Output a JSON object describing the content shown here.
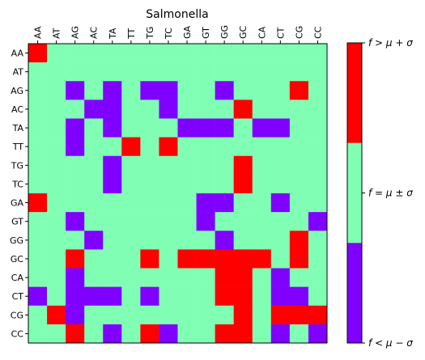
{
  "chart_data": {
    "type": "heatmap",
    "title": "Salmonella",
    "x_categories": [
      "AA",
      "AT",
      "AG",
      "AC",
      "TA",
      "TT",
      "TG",
      "TC",
      "GA",
      "GT",
      "GG",
      "GC",
      "CA",
      "CT",
      "CG",
      "CC"
    ],
    "y_categories": [
      "AA",
      "AT",
      "AG",
      "AC",
      "TA",
      "TT",
      "TG",
      "TC",
      "GA",
      "GT",
      "GG",
      "GC",
      "CA",
      "CT",
      "CG",
      "CC"
    ],
    "value_levels": [
      {
        "code": -1,
        "label": "f < μ − σ",
        "color": "#8000ff"
      },
      {
        "code": 0,
        "label": "f = μ ± σ",
        "color": "#80ffb4"
      },
      {
        "code": 1,
        "label": "f > μ + σ",
        "color": "#ff0000"
      }
    ],
    "matrix": [
      [
        1,
        0,
        0,
        0,
        0,
        0,
        0,
        0,
        0,
        0,
        0,
        0,
        0,
        0,
        0,
        0
      ],
      [
        0,
        0,
        0,
        0,
        0,
        0,
        0,
        0,
        0,
        0,
        0,
        0,
        0,
        0,
        0,
        0
      ],
      [
        0,
        0,
        -1,
        0,
        -1,
        0,
        -1,
        -1,
        0,
        0,
        -1,
        0,
        0,
        0,
        1,
        0
      ],
      [
        0,
        0,
        0,
        -1,
        -1,
        0,
        0,
        -1,
        0,
        0,
        0,
        1,
        0,
        0,
        0,
        0
      ],
      [
        0,
        0,
        -1,
        0,
        -1,
        0,
        0,
        0,
        -1,
        -1,
        -1,
        0,
        -1,
        -1,
        0,
        0
      ],
      [
        0,
        0,
        -1,
        0,
        0,
        1,
        0,
        1,
        0,
        0,
        0,
        0,
        0,
        0,
        0,
        0
      ],
      [
        0,
        0,
        0,
        0,
        -1,
        0,
        0,
        0,
        0,
        0,
        0,
        1,
        0,
        0,
        0,
        0
      ],
      [
        0,
        0,
        0,
        0,
        -1,
        0,
        0,
        0,
        0,
        0,
        0,
        1,
        0,
        0,
        0,
        0
      ],
      [
        1,
        0,
        0,
        0,
        0,
        0,
        0,
        0,
        0,
        -1,
        -1,
        0,
        0,
        -1,
        0,
        0
      ],
      [
        0,
        0,
        -1,
        0,
        0,
        0,
        0,
        0,
        0,
        -1,
        0,
        0,
        0,
        0,
        0,
        -1
      ],
      [
        0,
        0,
        0,
        -1,
        0,
        0,
        0,
        0,
        0,
        0,
        -1,
        0,
        0,
        0,
        1,
        0
      ],
      [
        0,
        0,
        1,
        0,
        0,
        0,
        1,
        0,
        1,
        1,
        1,
        1,
        1,
        0,
        1,
        0
      ],
      [
        0,
        0,
        -1,
        0,
        0,
        0,
        0,
        0,
        0,
        0,
        1,
        1,
        0,
        -1,
        0,
        0
      ],
      [
        -1,
        0,
        -1,
        -1,
        -1,
        0,
        -1,
        0,
        0,
        0,
        1,
        1,
        0,
        -1,
        -1,
        0
      ],
      [
        0,
        1,
        -1,
        0,
        0,
        0,
        0,
        0,
        0,
        0,
        0,
        1,
        0,
        1,
        1,
        1
      ],
      [
        0,
        0,
        1,
        0,
        -1,
        0,
        1,
        -1,
        0,
        0,
        1,
        1,
        0,
        -1,
        0,
        -1
      ]
    ]
  }
}
